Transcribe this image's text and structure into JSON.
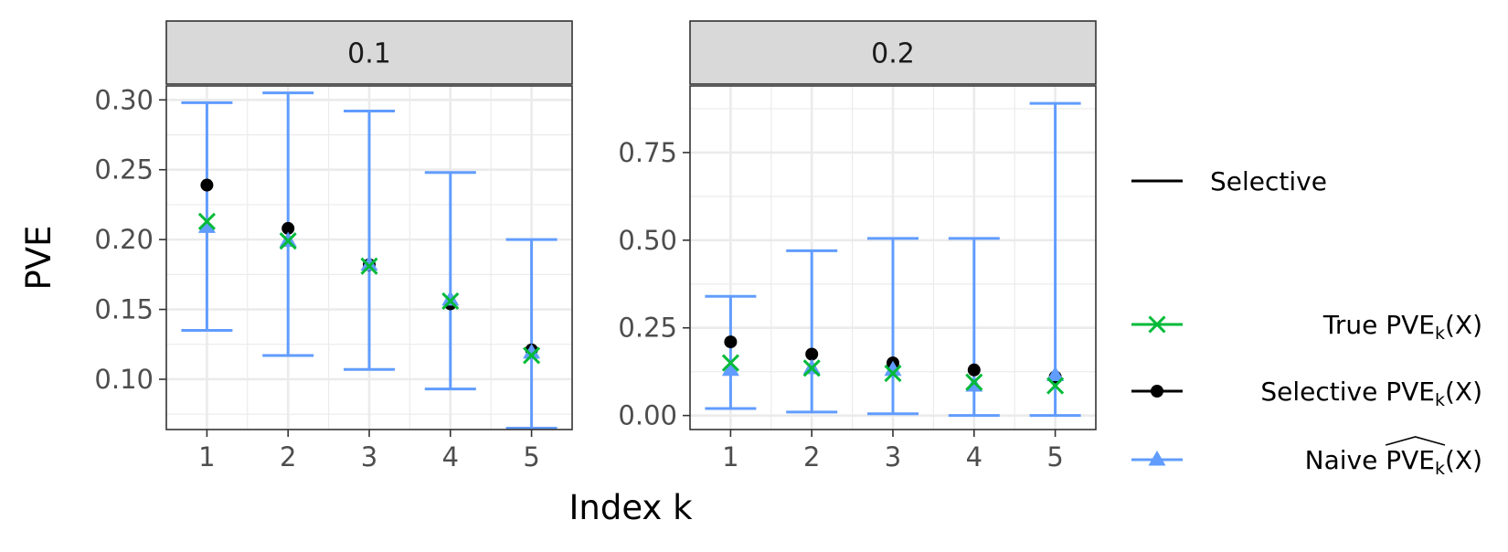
{
  "chart_data": {
    "type": "scatter",
    "xlabel": "Index k",
    "ylabel": "PVE",
    "grid": true,
    "legend_position": "right",
    "colors": {
      "naive": "#619CFF",
      "true": "#00BA38",
      "selective": "#000000",
      "strip_fill": "#D9D9D9",
      "grid": "#EBEBEB"
    },
    "legend": {
      "interval_label": "Selective",
      "entries": [
        {
          "key": "true",
          "label_main": "True PVE",
          "label_sub": "k",
          "label_tail": "(X)",
          "hat": false,
          "marker": "cross"
        },
        {
          "key": "selective",
          "label_main": "Selective PVE",
          "label_sub": "k",
          "label_tail": "(X)",
          "hat": false,
          "marker": "dot"
        },
        {
          "key": "naive",
          "label_main": "Naive ",
          "label_hat": "PVE",
          "label_sub": "k",
          "label_tail": "(X)",
          "hat": true,
          "marker": "triangle"
        }
      ]
    },
    "panels": [
      {
        "strip": "0.1",
        "ylim": [
          0.064,
          0.31
        ],
        "y_ticks": [
          0.1,
          0.15,
          0.2,
          0.25,
          0.3
        ],
        "y_tick_labels": [
          "0.10",
          "0.15",
          "0.20",
          "0.25",
          "0.30"
        ],
        "x": [
          1,
          2,
          3,
          4,
          5
        ],
        "true_pve": [
          0.213,
          0.199,
          0.181,
          0.156,
          0.117
        ],
        "selective_pve": [
          0.239,
          0.208,
          0.182,
          0.154,
          0.121
        ],
        "naive_pve": [
          0.209,
          0.199,
          0.182,
          0.157,
          0.119
        ],
        "interval_lower": [
          0.135,
          0.117,
          0.107,
          0.093,
          0.065
        ],
        "interval_upper": [
          0.298,
          0.305,
          0.292,
          0.248,
          0.2
        ]
      },
      {
        "strip": "0.2",
        "ylim": [
          -0.04,
          0.94
        ],
        "y_ticks": [
          0.0,
          0.25,
          0.5,
          0.75
        ],
        "y_tick_labels": [
          "0.00",
          "0.25",
          "0.50",
          "0.75"
        ],
        "x": [
          1,
          2,
          3,
          4,
          5
        ],
        "true_pve": [
          0.15,
          0.135,
          0.12,
          0.095,
          0.085
        ],
        "selective_pve": [
          0.21,
          0.175,
          0.15,
          0.13,
          0.11
        ],
        "naive_pve": [
          0.13,
          0.135,
          0.13,
          0.085,
          0.115
        ],
        "interval_lower": [
          0.02,
          0.01,
          0.005,
          0.0,
          0.0
        ],
        "interval_upper": [
          0.34,
          0.47,
          0.505,
          0.505,
          0.89
        ]
      }
    ]
  }
}
